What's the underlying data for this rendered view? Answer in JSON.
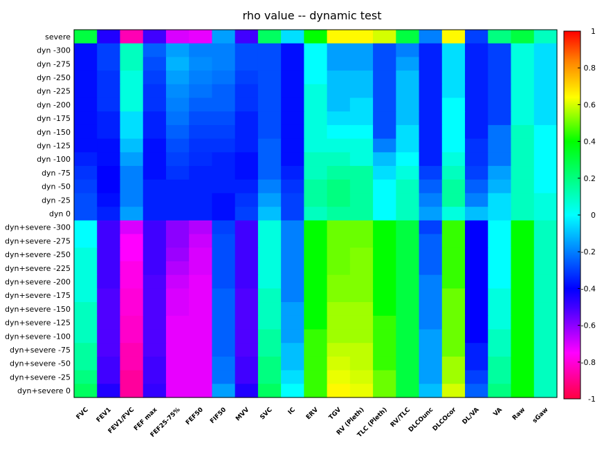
{
  "chart_data": {
    "type": "heatmap",
    "title": "rho value -- dynamic test",
    "rows": [
      "severe",
      "dyn -300",
      "dyn -275",
      "dyn -250",
      "dyn -225",
      "dyn -200",
      "dyn -175",
      "dyn -150",
      "dyn -125",
      "dyn -100",
      "dyn -75",
      "dyn -50",
      "dyn -25",
      "dyn 0",
      "dyn+severe -300",
      "dyn+severe -275",
      "dyn+severe -250",
      "dyn+severe -225",
      "dyn+severe -200",
      "dyn+severe -175",
      "dyn+severe -150",
      "dyn+severe -125",
      "dyn+severe -100",
      "dyn+severe -75",
      "dyn+severe -50",
      "dyn+severe -25",
      "dyn+severe 0"
    ],
    "columns": [
      "FVC",
      "FEV1",
      "FEV1/FVC",
      "FEF max",
      "FEF25-75%",
      "FEF50",
      "FIF50",
      "MVV",
      "SVC",
      "IC",
      "ERV",
      "TGV",
      "RV (Pleth)",
      "TLC (Pleth)",
      "RV/TLC",
      "DLCOunc",
      "DLCOcor",
      "DL/VA",
      "VA",
      "Raw",
      "sGaw"
    ],
    "values": [
      [
        0.3,
        -0.45,
        -0.85,
        -0.5,
        -0.7,
        -0.72,
        -0.15,
        -0.5,
        0.25,
        -0.05,
        0.4,
        0.65,
        0.65,
        0.6,
        0.3,
        -0.2,
        0.65,
        -0.3,
        0.2,
        0.3,
        0.1
      ],
      [
        -0.38,
        -0.3,
        0.1,
        -0.25,
        -0.15,
        -0.2,
        -0.2,
        -0.28,
        -0.28,
        -0.38,
        0.0,
        -0.15,
        -0.15,
        -0.28,
        -0.2,
        -0.35,
        -0.05,
        -0.35,
        -0.3,
        0.05,
        -0.05
      ],
      [
        -0.38,
        -0.3,
        0.1,
        -0.28,
        -0.12,
        -0.18,
        -0.2,
        -0.28,
        -0.28,
        -0.38,
        0.0,
        -0.15,
        -0.15,
        -0.28,
        -0.15,
        -0.35,
        -0.05,
        -0.35,
        -0.3,
        0.05,
        -0.05
      ],
      [
        -0.38,
        -0.32,
        0.05,
        -0.3,
        -0.15,
        -0.2,
        -0.22,
        -0.3,
        -0.28,
        -0.38,
        0.0,
        -0.1,
        -0.1,
        -0.28,
        -0.1,
        -0.35,
        -0.05,
        -0.35,
        -0.3,
        0.05,
        -0.05
      ],
      [
        -0.38,
        -0.32,
        0.05,
        -0.32,
        -0.18,
        -0.22,
        -0.25,
        -0.32,
        -0.28,
        -0.38,
        0.05,
        -0.1,
        -0.1,
        -0.28,
        -0.1,
        -0.35,
        -0.05,
        -0.35,
        -0.3,
        0.05,
        -0.05
      ],
      [
        -0.38,
        -0.32,
        0.05,
        -0.32,
        -0.2,
        -0.25,
        -0.25,
        -0.32,
        -0.28,
        -0.38,
        0.05,
        -0.1,
        -0.05,
        -0.28,
        -0.1,
        -0.35,
        0.0,
        -0.35,
        -0.3,
        0.05,
        -0.05
      ],
      [
        -0.38,
        -0.35,
        -0.05,
        -0.35,
        -0.22,
        -0.28,
        -0.28,
        -0.35,
        -0.28,
        -0.38,
        0.05,
        -0.05,
        -0.05,
        -0.28,
        -0.1,
        -0.35,
        0.0,
        -0.35,
        -0.3,
        0.05,
        -0.05
      ],
      [
        -0.38,
        -0.35,
        -0.05,
        -0.35,
        -0.25,
        -0.3,
        -0.3,
        -0.35,
        -0.28,
        -0.38,
        0.05,
        0.0,
        0.0,
        -0.28,
        -0.05,
        -0.35,
        0.0,
        -0.35,
        -0.22,
        0.1,
        0.0
      ],
      [
        -0.38,
        -0.38,
        -0.1,
        -0.38,
        -0.28,
        -0.32,
        -0.32,
        -0.35,
        -0.25,
        -0.38,
        0.05,
        0.05,
        0.05,
        -0.2,
        -0.05,
        -0.35,
        0.0,
        -0.32,
        -0.22,
        0.1,
        0.0
      ],
      [
        -0.35,
        -0.38,
        -0.15,
        -0.38,
        -0.3,
        -0.33,
        -0.35,
        -0.38,
        -0.25,
        -0.38,
        0.1,
        0.1,
        0.05,
        -0.1,
        0.0,
        -0.35,
        0.05,
        -0.32,
        -0.22,
        0.1,
        0.0
      ],
      [
        -0.32,
        -0.4,
        -0.2,
        -0.38,
        -0.32,
        -0.35,
        -0.35,
        -0.38,
        -0.25,
        -0.35,
        0.1,
        0.15,
        0.15,
        -0.05,
        0.05,
        -0.3,
        0.1,
        -0.3,
        -0.15,
        0.1,
        0.0
      ],
      [
        -0.3,
        -0.4,
        -0.2,
        -0.35,
        -0.35,
        -0.35,
        -0.35,
        -0.35,
        -0.2,
        -0.32,
        0.15,
        0.2,
        0.15,
        0.0,
        0.1,
        -0.25,
        0.15,
        -0.25,
        -0.12,
        0.1,
        0.0
      ],
      [
        -0.28,
        -0.38,
        -0.2,
        -0.35,
        -0.35,
        -0.35,
        -0.38,
        -0.32,
        -0.15,
        -0.3,
        0.15,
        0.2,
        0.15,
        0.0,
        0.1,
        -0.2,
        0.15,
        -0.2,
        -0.05,
        0.1,
        0.05
      ],
      [
        -0.28,
        -0.35,
        -0.15,
        -0.35,
        -0.35,
        -0.35,
        -0.38,
        -0.3,
        -0.1,
        -0.3,
        0.1,
        0.15,
        0.15,
        0.0,
        0.1,
        -0.15,
        0.05,
        -0.1,
        -0.05,
        0.1,
        0.05
      ],
      [
        0.0,
        -0.5,
        -0.7,
        -0.5,
        -0.6,
        -0.65,
        -0.3,
        -0.5,
        0.05,
        -0.2,
        0.4,
        0.5,
        0.5,
        0.4,
        0.3,
        -0.3,
        0.45,
        -0.4,
        0.0,
        0.4,
        0.1
      ],
      [
        0.0,
        -0.5,
        -0.75,
        -0.5,
        -0.6,
        -0.68,
        -0.28,
        -0.5,
        0.05,
        -0.2,
        0.4,
        0.5,
        0.5,
        0.4,
        0.3,
        -0.25,
        0.45,
        -0.4,
        0.0,
        0.4,
        0.1
      ],
      [
        0.05,
        -0.5,
        -0.75,
        -0.5,
        -0.62,
        -0.7,
        -0.28,
        -0.5,
        0.05,
        -0.2,
        0.4,
        0.5,
        0.52,
        0.4,
        0.3,
        -0.25,
        0.45,
        -0.4,
        0.0,
        0.4,
        0.1
      ],
      [
        0.05,
        -0.5,
        -0.78,
        -0.5,
        -0.65,
        -0.7,
        -0.28,
        -0.5,
        0.05,
        -0.2,
        0.4,
        0.5,
        0.52,
        0.4,
        0.3,
        -0.25,
        0.45,
        -0.4,
        0.0,
        0.4,
        0.1
      ],
      [
        0.05,
        -0.5,
        -0.78,
        -0.52,
        -0.68,
        -0.72,
        -0.28,
        -0.5,
        0.05,
        -0.2,
        0.4,
        0.52,
        0.52,
        0.4,
        0.3,
        -0.2,
        0.45,
        -0.4,
        0.0,
        0.4,
        0.1
      ],
      [
        0.05,
        -0.52,
        -0.8,
        -0.52,
        -0.7,
        -0.72,
        -0.25,
        -0.52,
        0.1,
        -0.2,
        0.4,
        0.52,
        0.52,
        0.4,
        0.3,
        -0.2,
        0.5,
        -0.4,
        0.05,
        0.4,
        0.1
      ],
      [
        0.1,
        -0.52,
        -0.8,
        -0.52,
        -0.7,
        -0.72,
        -0.25,
        -0.52,
        0.1,
        -0.15,
        0.4,
        0.55,
        0.55,
        0.4,
        0.3,
        -0.2,
        0.5,
        -0.4,
        0.05,
        0.4,
        0.1
      ],
      [
        0.1,
        -0.52,
        -0.82,
        -0.52,
        -0.72,
        -0.72,
        -0.25,
        -0.52,
        0.1,
        -0.15,
        0.4,
        0.55,
        0.55,
        0.45,
        0.3,
        -0.2,
        0.5,
        -0.4,
        0.05,
        0.4,
        0.1
      ],
      [
        0.1,
        -0.52,
        -0.82,
        -0.52,
        -0.72,
        -0.72,
        -0.25,
        -0.52,
        0.15,
        -0.15,
        0.45,
        0.55,
        0.55,
        0.45,
        0.3,
        -0.15,
        0.5,
        -0.4,
        0.1,
        0.4,
        0.1
      ],
      [
        0.15,
        -0.52,
        -0.85,
        -0.52,
        -0.72,
        -0.72,
        -0.25,
        -0.52,
        0.15,
        -0.1,
        0.45,
        0.58,
        0.58,
        0.45,
        0.3,
        -0.15,
        0.5,
        -0.35,
        0.1,
        0.4,
        0.1
      ],
      [
        0.15,
        -0.5,
        -0.85,
        -0.5,
        -0.72,
        -0.72,
        -0.22,
        -0.5,
        0.2,
        -0.1,
        0.45,
        0.6,
        0.58,
        0.45,
        0.3,
        -0.15,
        0.55,
        -0.35,
        0.15,
        0.4,
        0.1
      ],
      [
        0.2,
        -0.5,
        -0.88,
        -0.5,
        -0.72,
        -0.72,
        -0.22,
        -0.5,
        0.2,
        -0.05,
        0.45,
        0.62,
        0.6,
        0.5,
        0.3,
        -0.15,
        0.55,
        -0.3,
        0.15,
        0.4,
        0.1
      ],
      [
        0.25,
        -0.45,
        -0.88,
        -0.48,
        -0.72,
        -0.72,
        -0.15,
        -0.45,
        0.25,
        0.0,
        0.45,
        0.65,
        0.62,
        0.5,
        0.3,
        -0.1,
        0.6,
        -0.25,
        0.2,
        0.4,
        0.1
      ]
    ],
    "colorbar": {
      "min": -1,
      "max": 1,
      "ticks": [
        "1",
        "0.8",
        "0.6",
        "0.4",
        "0.2",
        "0",
        "-0.2",
        "-0.4",
        "-0.6",
        "-0.8",
        "-1"
      ]
    },
    "colormap": [
      "#ff0040",
      "#ff00ff",
      "#4000ff",
      "#0000ff",
      "#00ffff",
      "#00ff00",
      "#ffff00",
      "#ff8000",
      "#ff0000"
    ]
  }
}
